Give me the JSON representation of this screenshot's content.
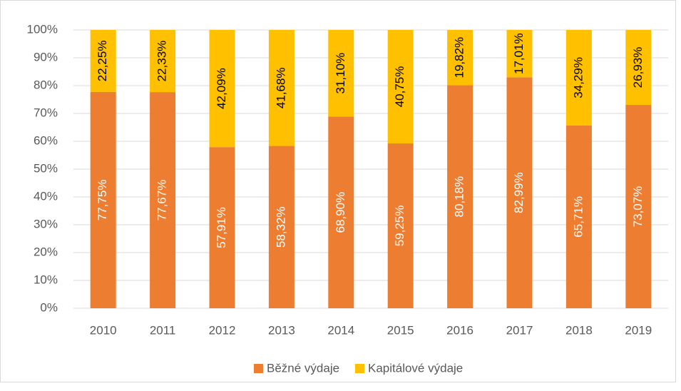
{
  "chart_data": {
    "type": "stacked_bar",
    "categories": [
      "2010",
      "2011",
      "2012",
      "2013",
      "2014",
      "2015",
      "2016",
      "2017",
      "2018",
      "2019"
    ],
    "series": [
      {
        "name": "Běžné výdaje",
        "color": "#ed7d31",
        "values": [
          77.75,
          77.67,
          57.91,
          58.32,
          68.9,
          59.25,
          80.18,
          82.99,
          65.71,
          73.07
        ],
        "value_labels": [
          "77,75%",
          "77,67%",
          "57,91%",
          "58,32%",
          "68,90%",
          "59,25%",
          "80,18%",
          "82,99%",
          "65,71%",
          "73,07%"
        ]
      },
      {
        "name": "Kapitálové výdaje",
        "color": "#ffc000",
        "values": [
          22.25,
          22.33,
          42.09,
          41.68,
          31.1,
          40.75,
          19.82,
          17.01,
          34.29,
          26.93
        ],
        "value_labels": [
          "22,25%",
          "22,33%",
          "42,09%",
          "41,68%",
          "31,10%",
          "40,75%",
          "19,82%",
          "17,01%",
          "34,29%",
          "26,93%"
        ]
      }
    ],
    "ylim": [
      0,
      100
    ],
    "yticks": [
      {
        "value": 0,
        "label": "0%"
      },
      {
        "value": 10,
        "label": "10%"
      },
      {
        "value": 20,
        "label": "20%"
      },
      {
        "value": 30,
        "label": "30%"
      },
      {
        "value": 40,
        "label": "40%"
      },
      {
        "value": 50,
        "label": "50%"
      },
      {
        "value": 60,
        "label": "60%"
      },
      {
        "value": 70,
        "label": "70%"
      },
      {
        "value": 80,
        "label": "80%"
      },
      {
        "value": 90,
        "label": "90%"
      },
      {
        "value": 100,
        "label": "100%"
      }
    ],
    "grid": true,
    "legend": "bottom"
  }
}
